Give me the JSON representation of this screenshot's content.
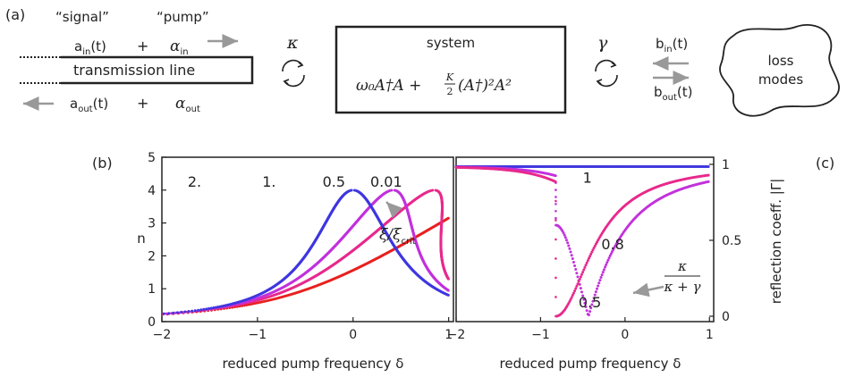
{
  "panel_a": {
    "label": "(a)",
    "signal_label": "“signal”",
    "pump_label": "“pump”",
    "a_in": "a",
    "a_in_sub": "in",
    "a_in_arg": "(t)",
    "plus_top": "+",
    "alpha_in": "α",
    "alpha_in_sub": "in",
    "transmission_line": "transmission line",
    "a_out": "a",
    "a_out_sub": "out",
    "a_out_arg": "(t)",
    "plus_bottom": "+",
    "alpha_out": "α",
    "alpha_out_sub": "out",
    "kappa": "κ",
    "system_title": "system",
    "hamiltonian_a": "ω₀A†A + ",
    "hamiltonian_k": "K",
    "hamiltonian_2": "2",
    "hamiltonian_b": "(A†)²A²",
    "gamma": "γ",
    "b_in": "b",
    "b_in_sub": "in",
    "b_in_arg": "(t)",
    "b_out": "b",
    "b_out_sub": "out",
    "b_out_arg": "(t)",
    "loss_modes_1": "loss",
    "loss_modes_2": "modes",
    "colors": {
      "arrow": "#999999",
      "line": "#222222"
    }
  },
  "chart_data": [
    {
      "panel": "(b)",
      "type": "scatter",
      "xlabel": "reduced pump frequency δ",
      "ylabel": "n",
      "xlim": [
        -2,
        1.05
      ],
      "ylim": [
        0,
        5
      ],
      "xticks": [
        "−2",
        "−1",
        "0",
        "1"
      ],
      "yticks": [
        "0",
        "1",
        "2",
        "3",
        "4",
        "5"
      ],
      "annotation": {
        "text": "ξ/ξ",
        "sub": "crit"
      },
      "series": [
        {
          "name": "2.",
          "color": "#e8201f",
          "xi": 2.0
        },
        {
          "name": "1.",
          "color": "#e8298c",
          "xi": 1.0
        },
        {
          "name": "0.5",
          "color": "#c231dc",
          "xi": 0.5
        },
        {
          "name": "0.01",
          "color": "#3f37e0",
          "xi": 0.01
        }
      ]
    },
    {
      "panel": "(c)",
      "type": "scatter",
      "xlabel": "reduced pump frequency δ",
      "ylabel": "reflection coeff. |Γ|",
      "xlim": [
        -2,
        1.05
      ],
      "ylim": [
        0,
        1
      ],
      "xticks": [
        "−2",
        "−1",
        "0",
        "1"
      ],
      "yticks": [
        "0",
        "0.5",
        "1"
      ],
      "annotation": {
        "num": "κ",
        "den": "κ + γ"
      },
      "series": [
        {
          "name": "1",
          "color": "#3f37e0",
          "ratio": 1.0
        },
        {
          "name": "0.8",
          "color": "#c231dc",
          "ratio": 0.8
        },
        {
          "name": "0.5",
          "color": "#e8298c",
          "ratio": 0.5
        }
      ]
    }
  ]
}
